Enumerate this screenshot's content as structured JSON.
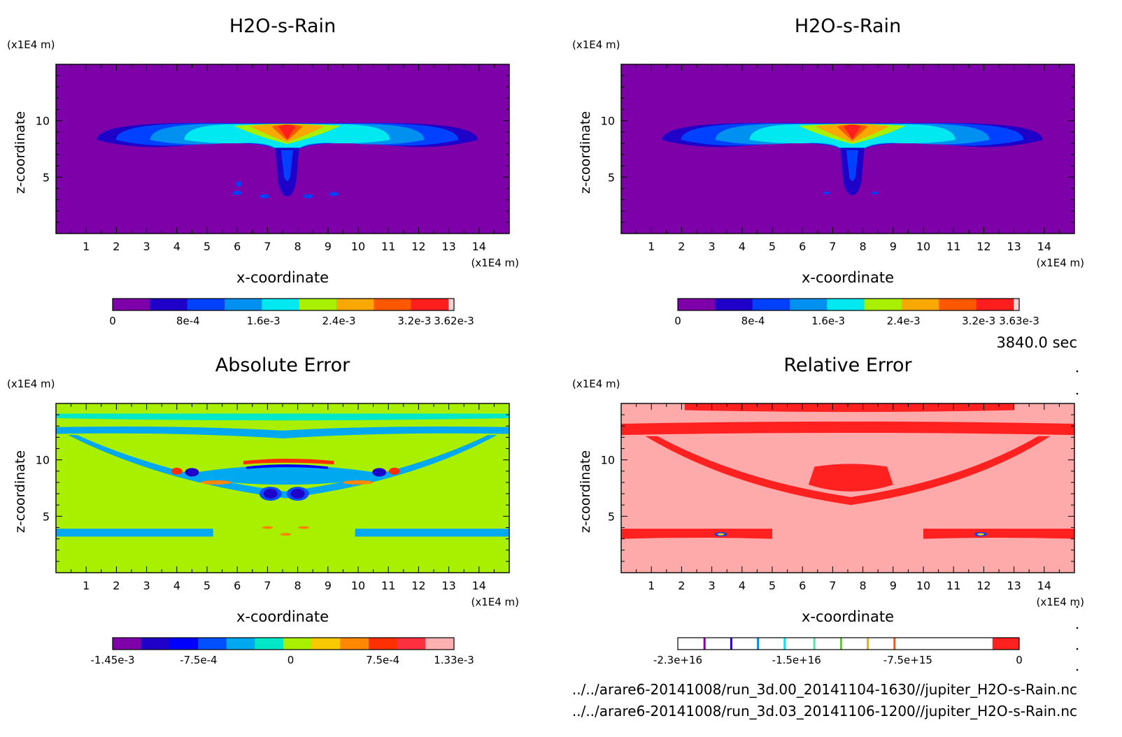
{
  "time_label": "3840.0 sec",
  "footer": {
    "line1": "../../arare6-20141008/run_3d.00_20141104-1630//jupiter_H2O-s-Rain.nc",
    "line2": "../../arare6-20141008/run_3d.03_20141106-1200//jupiter_H2O-s-Rain.nc"
  },
  "colormaps": {
    "rain10": [
      "#7e00a8",
      "#1e00c8",
      "#0040ff",
      "#0090f0",
      "#00e8f0",
      "#a8f000",
      "#f8a800",
      "#ff5800",
      "#ff1e1e",
      "#ffd0d0"
    ],
    "err12": [
      "#7e00a8",
      "#1e00c8",
      "#0000ff",
      "#0050ff",
      "#00a8f0",
      "#00e8c8",
      "#a8f000",
      "#f8c800",
      "#ff8800",
      "#ff3000",
      "#ff3040",
      "#ffb0b0"
    ],
    "rel": [
      "#ff2020",
      "#ffaaaa"
    ]
  },
  "chart_data": [
    {
      "type": "heatmap",
      "title": "H2O-s-Rain",
      "xlabel": "x-coordinate",
      "ylabel": "z-coordinate",
      "x_unit": "(x1E4 m)",
      "y_unit": "(x1E4 m)",
      "xlim": [
        0,
        15
      ],
      "ylim": [
        0,
        15
      ],
      "x_ticks": [
        1,
        2,
        3,
        4,
        5,
        6,
        7,
        8,
        9,
        10,
        11,
        12,
        13,
        14
      ],
      "y_ticks": [
        5,
        10
      ],
      "feature": "rain_left",
      "colorbar": {
        "range": [
          0,
          0.00362
        ],
        "tick_values": [
          0,
          0.0008,
          0.0016,
          0.0024,
          0.0032,
          0.00362
        ],
        "tick_labels": [
          "0",
          "8e-4",
          "1.6e-3",
          "2.4e-3",
          "3.2e-3",
          "3.62e-3"
        ],
        "colormap": "rain10"
      }
    },
    {
      "type": "heatmap",
      "title": "H2O-s-Rain",
      "xlabel": "x-coordinate",
      "ylabel": "z-coordinate",
      "x_unit": "(x1E4 m)",
      "y_unit": "(x1E4 m)",
      "xlim": [
        0,
        15
      ],
      "ylim": [
        0,
        15
      ],
      "x_ticks": [
        1,
        2,
        3,
        4,
        5,
        6,
        7,
        8,
        9,
        10,
        11,
        12,
        13,
        14
      ],
      "y_ticks": [
        5,
        10
      ],
      "feature": "rain_right",
      "colorbar": {
        "range": [
          0,
          0.00363
        ],
        "tick_values": [
          0,
          0.0008,
          0.0016,
          0.0024,
          0.0032,
          0.00363
        ],
        "tick_labels": [
          "0",
          "8e-4",
          "1.6e-3",
          "2.4e-3",
          "3.2e-3",
          "3.63e-3"
        ],
        "colormap": "rain10"
      }
    },
    {
      "type": "heatmap",
      "title": "Absolute Error",
      "xlabel": "x-coordinate",
      "ylabel": "z-coordinate",
      "x_unit": "(x1E4 m)",
      "y_unit": "(x1E4 m)",
      "xlim": [
        0,
        15
      ],
      "ylim": [
        0,
        15
      ],
      "x_ticks": [
        1,
        2,
        3,
        4,
        5,
        6,
        7,
        8,
        9,
        10,
        11,
        12,
        13,
        14
      ],
      "y_ticks": [
        5,
        10
      ],
      "feature": "abs_error",
      "colorbar": {
        "range": [
          -0.00145,
          0.00133
        ],
        "tick_values": [
          -0.00145,
          -0.00075,
          0,
          0.00075,
          0.00133
        ],
        "tick_labels": [
          "-1.45e-3",
          "-7.5e-4",
          "0",
          "7.5e-4",
          "1.33e-3"
        ],
        "colormap": "err12"
      }
    },
    {
      "type": "heatmap",
      "title": "Relative Error",
      "xlabel": "x-coordinate",
      "ylabel": "z-coordinate",
      "x_unit": "(x1E4 m)",
      "y_unit": "(x1E4 m)",
      "xlim": [
        0,
        15
      ],
      "ylim": [
        0,
        15
      ],
      "x_ticks": [
        1,
        2,
        3,
        4,
        5,
        6,
        7,
        8,
        9,
        10,
        11,
        12,
        13,
        14
      ],
      "y_ticks": [
        5,
        10
      ],
      "feature": "rel_error",
      "colorbar": {
        "range": [
          -2.3e+16,
          0
        ],
        "tick_values": [
          -2.3e+16,
          -1.5e+16,
          -7500000000000000.0,
          0
        ],
        "tick_labels": [
          "-2.3e+16",
          "-1.5e+16",
          "-7.5e+15",
          "0"
        ],
        "colormap": "rel_lines"
      }
    }
  ]
}
